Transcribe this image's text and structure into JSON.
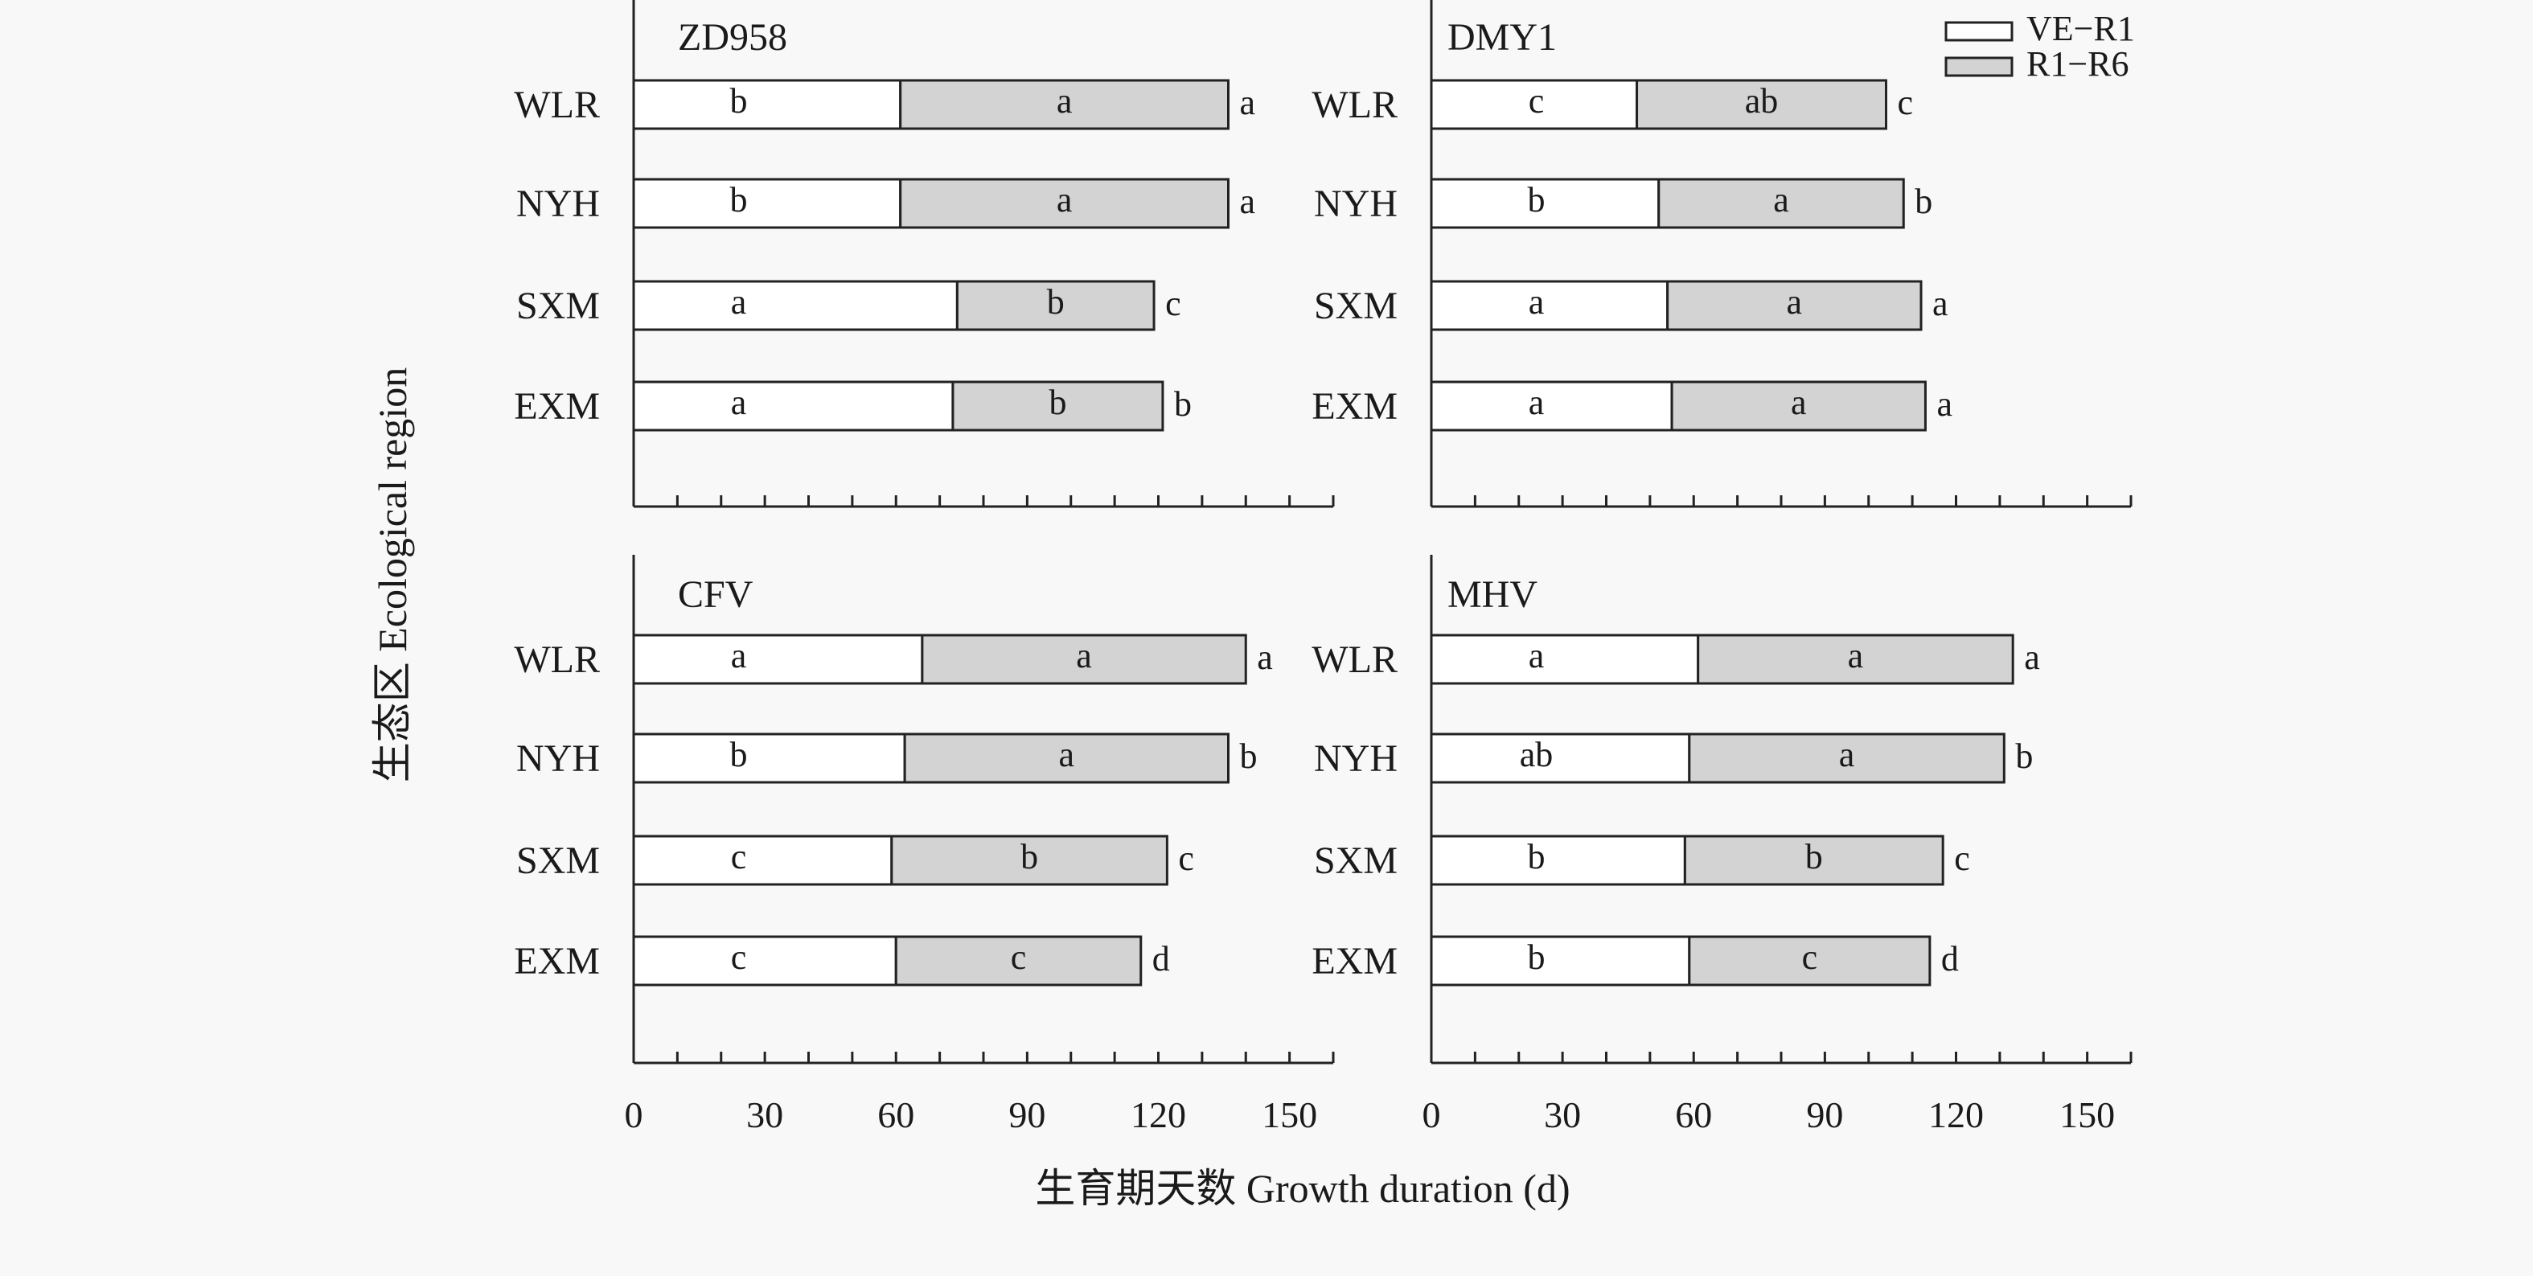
{
  "colors": {
    "background": "#f8f8f8",
    "axis": "#222222",
    "seg1_fill": "#ffffff",
    "seg2_fill": "#d3d3d3",
    "bar_stroke": "#222222"
  },
  "axes": {
    "xlabel": "生育期天数 Growth duration (d)",
    "ylabel": "生态区 Ecological region"
  },
  "legend": {
    "placement": "top-right",
    "items": [
      {
        "label": "VE−R1",
        "color": "#ffffff"
      },
      {
        "label": "R1−R6",
        "color": "#d3d3d3"
      }
    ]
  },
  "chart_data": [
    {
      "type": "bar",
      "orientation": "horizontal",
      "stacked": true,
      "title": "ZD958",
      "categories": [
        "WLR",
        "NYH",
        "SXM",
        "EXM"
      ],
      "series": [
        {
          "name": "VE−R1",
          "values": [
            61,
            61,
            74,
            73
          ],
          "labels": [
            "b",
            "b",
            "a",
            "a"
          ]
        },
        {
          "name": "R1−R6",
          "values": [
            75,
            75,
            45,
            48
          ],
          "labels": [
            "a",
            "a",
            "b",
            "b"
          ]
        }
      ],
      "total_labels": [
        "a",
        "a",
        "c",
        "b"
      ],
      "xticks": [
        0,
        30,
        60,
        90,
        120,
        150
      ],
      "xlim": [
        0,
        160
      ]
    },
    {
      "type": "bar",
      "orientation": "horizontal",
      "stacked": true,
      "title": "DMY1",
      "categories": [
        "WLR",
        "NYH",
        "SXM",
        "EXM"
      ],
      "series": [
        {
          "name": "VE−R1",
          "values": [
            47,
            52,
            54,
            55
          ],
          "labels": [
            "c",
            "b",
            "a",
            "a"
          ]
        },
        {
          "name": "R1−R6",
          "values": [
            57,
            56,
            58,
            58
          ],
          "labels": [
            "ab",
            "a",
            "a",
            "a"
          ]
        }
      ],
      "total_labels": [
        "c",
        "b",
        "a",
        "a"
      ],
      "xticks": [
        0,
        30,
        60,
        90,
        120,
        150
      ],
      "xlim": [
        0,
        160
      ]
    },
    {
      "type": "bar",
      "orientation": "horizontal",
      "stacked": true,
      "title": "CFV",
      "categories": [
        "WLR",
        "NYH",
        "SXM",
        "EXM"
      ],
      "series": [
        {
          "name": "VE−R1",
          "values": [
            66,
            62,
            59,
            60
          ],
          "labels": [
            "a",
            "b",
            "c",
            "c"
          ]
        },
        {
          "name": "R1−R6",
          "values": [
            74,
            74,
            63,
            56
          ],
          "labels": [
            "a",
            "a",
            "b",
            "c"
          ]
        }
      ],
      "total_labels": [
        "a",
        "b",
        "c",
        "d"
      ],
      "xticks": [
        0,
        30,
        60,
        90,
        120,
        150
      ],
      "xlim": [
        0,
        160
      ]
    },
    {
      "type": "bar",
      "orientation": "horizontal",
      "stacked": true,
      "title": "MHV",
      "categories": [
        "WLR",
        "NYH",
        "SXM",
        "EXM"
      ],
      "series": [
        {
          "name": "VE−R1",
          "values": [
            61,
            59,
            58,
            59
          ],
          "labels": [
            "a",
            "ab",
            "b",
            "b"
          ]
        },
        {
          "name": "R1−R6",
          "values": [
            72,
            72,
            59,
            55
          ],
          "labels": [
            "a",
            "a",
            "b",
            "c"
          ]
        }
      ],
      "total_labels": [
        "a",
        "b",
        "c",
        "d"
      ],
      "xticks": [
        0,
        30,
        60,
        90,
        120,
        150
      ],
      "xlim": [
        0,
        160
      ]
    }
  ]
}
